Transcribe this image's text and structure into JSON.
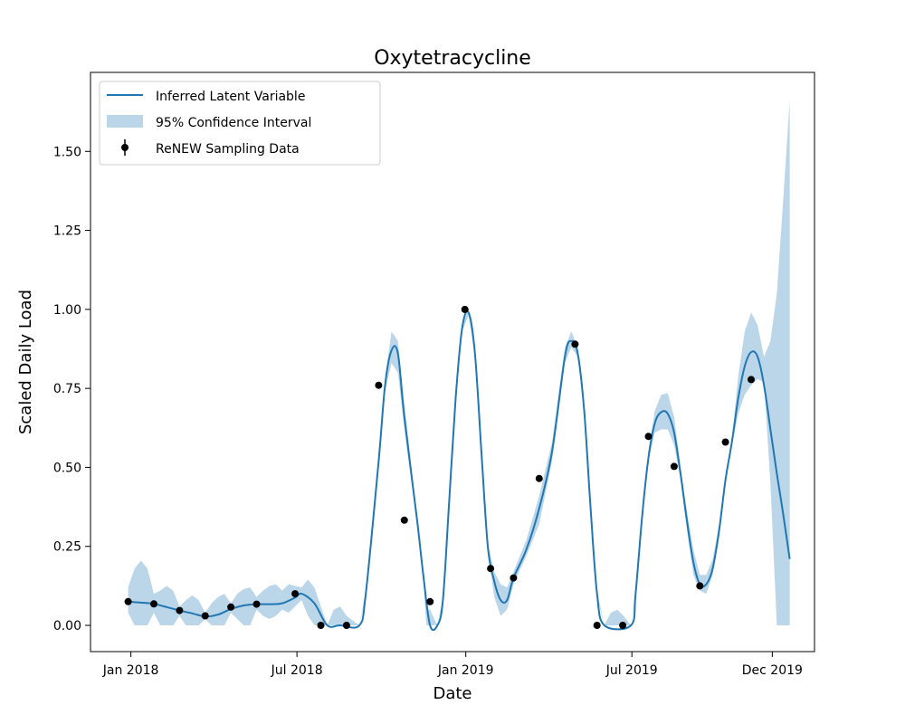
{
  "chart_data": {
    "type": "line",
    "title": "Oxytetracycline",
    "xlabel": "Date",
    "ylabel": "Scaled Daily Load",
    "x_tick_labels": [
      "Jan 2018",
      "Jul 2018",
      "Jan 2019",
      "Jul 2019",
      "Dec 2019"
    ],
    "x_ticks": [
      "2018-01-01",
      "2018-07-01",
      "2019-01-01",
      "2019-07-01",
      "2019-12-01"
    ],
    "y_ticks": [
      0.0,
      0.25,
      0.5,
      0.75,
      1.0,
      1.25,
      1.5
    ],
    "y_tick_labels": [
      "0.00",
      "0.25",
      "0.50",
      "0.75",
      "1.00",
      "1.25",
      "1.50"
    ],
    "xlim": [
      "2017-11-18",
      "2020-01-16"
    ],
    "ylim": [
      -0.083,
      1.75
    ],
    "grid": false,
    "legend_position": "top-left",
    "colors": {
      "line": "#1f77b4",
      "band": "#1f77b4",
      "points": "#000000"
    },
    "series": [
      {
        "name": "Inferred Latent Variable",
        "kind": "line",
        "points": [
          [
            "2017-12-29",
            0.075
          ],
          [
            "2018-01-12",
            0.072
          ],
          [
            "2018-01-26",
            0.068
          ],
          [
            "2018-02-09",
            0.058
          ],
          [
            "2018-02-23",
            0.047
          ],
          [
            "2018-03-09",
            0.038
          ],
          [
            "2018-03-23",
            0.028
          ],
          [
            "2018-04-06",
            0.034
          ],
          [
            "2018-04-20",
            0.052
          ],
          [
            "2018-05-04",
            0.063
          ],
          [
            "2018-05-18",
            0.067
          ],
          [
            "2018-06-01",
            0.067
          ],
          [
            "2018-06-15",
            0.07
          ],
          [
            "2018-06-29",
            0.088
          ],
          [
            "2018-07-06",
            0.1
          ],
          [
            "2018-07-20",
            0.07
          ],
          [
            "2018-08-03",
            0.0
          ],
          [
            "2018-08-17",
            0.0
          ],
          [
            "2018-09-07",
            0.0
          ],
          [
            "2018-09-14",
            0.1
          ],
          [
            "2018-09-28",
            0.52
          ],
          [
            "2018-10-05",
            0.76
          ],
          [
            "2018-10-12",
            0.87
          ],
          [
            "2018-10-19",
            0.86
          ],
          [
            "2018-10-26",
            0.66
          ],
          [
            "2018-11-09",
            0.33
          ],
          [
            "2018-11-16",
            0.15
          ],
          [
            "2018-11-23",
            0.0
          ],
          [
            "2018-12-01",
            0.0
          ],
          [
            "2018-12-07",
            0.08
          ],
          [
            "2018-12-14",
            0.4
          ],
          [
            "2018-12-21",
            0.72
          ],
          [
            "2018-12-28",
            0.94
          ],
          [
            "2019-01-04",
            0.99
          ],
          [
            "2019-01-11",
            0.86
          ],
          [
            "2019-01-18",
            0.55
          ],
          [
            "2019-01-25",
            0.25
          ],
          [
            "2019-02-01",
            0.14
          ],
          [
            "2019-02-08",
            0.08
          ],
          [
            "2019-02-15",
            0.08
          ],
          [
            "2019-02-22",
            0.15
          ],
          [
            "2019-03-08",
            0.24
          ],
          [
            "2019-03-22",
            0.37
          ],
          [
            "2019-04-05",
            0.55
          ],
          [
            "2019-04-19",
            0.85
          ],
          [
            "2019-04-26",
            0.9
          ],
          [
            "2019-05-03",
            0.86
          ],
          [
            "2019-05-10",
            0.68
          ],
          [
            "2019-05-17",
            0.37
          ],
          [
            "2019-05-24",
            0.1
          ],
          [
            "2019-06-01",
            0.0
          ],
          [
            "2019-06-30",
            0.0
          ],
          [
            "2019-07-05",
            0.1
          ],
          [
            "2019-07-12",
            0.34
          ],
          [
            "2019-07-19",
            0.53
          ],
          [
            "2019-07-26",
            0.64
          ],
          [
            "2019-08-02",
            0.675
          ],
          [
            "2019-08-09",
            0.67
          ],
          [
            "2019-08-16",
            0.61
          ],
          [
            "2019-08-23",
            0.48
          ],
          [
            "2019-08-30",
            0.33
          ],
          [
            "2019-09-06",
            0.2
          ],
          [
            "2019-09-13",
            0.13
          ],
          [
            "2019-09-20",
            0.13
          ],
          [
            "2019-09-27",
            0.18
          ],
          [
            "2019-10-04",
            0.3
          ],
          [
            "2019-10-11",
            0.46
          ],
          [
            "2019-10-18",
            0.58
          ],
          [
            "2019-10-25",
            0.72
          ],
          [
            "2019-11-01",
            0.82
          ],
          [
            "2019-11-08",
            0.865
          ],
          [
            "2019-11-15",
            0.85
          ],
          [
            "2019-11-22",
            0.76
          ],
          [
            "2019-11-29",
            0.62
          ],
          [
            "2019-12-06",
            0.48
          ],
          [
            "2019-12-13",
            0.35
          ],
          [
            "2019-12-20",
            0.21
          ]
        ]
      },
      {
        "name": "95% Confidence Interval",
        "kind": "band",
        "points": [
          [
            "2017-12-29",
            0.04,
            0.12
          ],
          [
            "2018-01-05",
            0.0,
            0.18
          ],
          [
            "2018-01-12",
            0.0,
            0.205
          ],
          [
            "2018-01-19",
            0.0,
            0.18
          ],
          [
            "2018-01-26",
            0.04,
            0.1
          ],
          [
            "2018-02-02",
            0.0,
            0.11
          ],
          [
            "2018-02-09",
            0.0,
            0.125
          ],
          [
            "2018-02-16",
            0.0,
            0.11
          ],
          [
            "2018-02-23",
            0.03,
            0.06
          ],
          [
            "2018-03-02",
            0.0,
            0.08
          ],
          [
            "2018-03-09",
            0.0,
            0.095
          ],
          [
            "2018-03-16",
            0.0,
            0.08
          ],
          [
            "2018-03-23",
            0.02,
            0.04
          ],
          [
            "2018-03-30",
            0.0,
            0.07
          ],
          [
            "2018-04-06",
            0.0,
            0.09
          ],
          [
            "2018-04-13",
            0.0,
            0.1
          ],
          [
            "2018-04-20",
            0.04,
            0.07
          ],
          [
            "2018-04-27",
            0.02,
            0.1
          ],
          [
            "2018-05-04",
            0.0,
            0.115
          ],
          [
            "2018-05-11",
            0.0,
            0.12
          ],
          [
            "2018-05-18",
            0.05,
            0.09
          ],
          [
            "2018-05-25",
            0.03,
            0.11
          ],
          [
            "2018-06-01",
            0.02,
            0.125
          ],
          [
            "2018-06-08",
            0.03,
            0.13
          ],
          [
            "2018-06-15",
            0.05,
            0.11
          ],
          [
            "2018-06-22",
            0.04,
            0.13
          ],
          [
            "2018-06-29",
            0.06,
            0.125
          ],
          [
            "2018-07-06",
            0.08,
            0.12
          ],
          [
            "2018-07-13",
            0.03,
            0.145
          ],
          [
            "2018-07-20",
            0.0,
            0.12
          ],
          [
            "2018-07-27",
            0.0,
            0.06
          ],
          [
            "2018-08-03",
            0.0,
            0.0
          ],
          [
            "2018-08-10",
            0.0,
            0.05
          ],
          [
            "2018-08-17",
            0.0,
            0.06
          ],
          [
            "2018-08-24",
            0.0,
            0.03
          ],
          [
            "2018-09-07",
            0.0,
            0.0
          ],
          [
            "2018-09-14",
            0.09,
            0.11
          ],
          [
            "2018-09-28",
            0.5,
            0.54
          ],
          [
            "2018-10-05",
            0.74,
            0.78
          ],
          [
            "2018-10-12",
            0.83,
            0.93
          ],
          [
            "2018-10-19",
            0.8,
            0.9
          ],
          [
            "2018-10-26",
            0.62,
            0.7
          ],
          [
            "2018-11-09",
            0.32,
            0.34
          ],
          [
            "2018-11-16",
            0.13,
            0.17
          ],
          [
            "2018-11-19",
            0.0,
            0.05
          ],
          [
            "2018-11-23",
            0.0,
            0.05
          ],
          [
            "2018-11-26",
            0.0,
            0.03
          ],
          [
            "2018-12-01",
            0.0,
            0.0
          ],
          [
            "2018-12-07",
            0.07,
            0.09
          ],
          [
            "2018-12-14",
            0.39,
            0.41
          ],
          [
            "2018-12-21",
            0.71,
            0.73
          ],
          [
            "2018-12-28",
            0.93,
            0.95
          ],
          [
            "2019-01-04",
            0.98,
            1.0
          ],
          [
            "2019-01-11",
            0.85,
            0.87
          ],
          [
            "2019-01-18",
            0.53,
            0.57
          ],
          [
            "2019-01-25",
            0.24,
            0.26
          ],
          [
            "2019-02-01",
            0.09,
            0.17
          ],
          [
            "2019-02-08",
            0.03,
            0.13
          ],
          [
            "2019-02-15",
            0.05,
            0.12
          ],
          [
            "2019-02-22",
            0.13,
            0.17
          ],
          [
            "2019-03-08",
            0.22,
            0.27
          ],
          [
            "2019-03-22",
            0.32,
            0.41
          ],
          [
            "2019-04-05",
            0.52,
            0.58
          ],
          [
            "2019-04-19",
            0.83,
            0.88
          ],
          [
            "2019-04-26",
            0.88,
            0.93
          ],
          [
            "2019-05-03",
            0.85,
            0.88
          ],
          [
            "2019-05-10",
            0.67,
            0.69
          ],
          [
            "2019-05-17",
            0.36,
            0.38
          ],
          [
            "2019-05-24",
            0.09,
            0.11
          ],
          [
            "2019-06-01",
            0.0,
            0.0
          ],
          [
            "2019-06-08",
            0.0,
            0.04
          ],
          [
            "2019-06-15",
            0.0,
            0.05
          ],
          [
            "2019-06-22",
            0.0,
            0.03
          ],
          [
            "2019-06-30",
            0.0,
            0.0
          ],
          [
            "2019-07-05",
            0.09,
            0.11
          ],
          [
            "2019-07-12",
            0.33,
            0.35
          ],
          [
            "2019-07-19",
            0.52,
            0.55
          ],
          [
            "2019-07-26",
            0.61,
            0.68
          ],
          [
            "2019-08-02",
            0.62,
            0.73
          ],
          [
            "2019-08-09",
            0.62,
            0.735
          ],
          [
            "2019-08-16",
            0.57,
            0.66
          ],
          [
            "2019-08-23",
            0.46,
            0.5
          ],
          [
            "2019-08-30",
            0.3,
            0.36
          ],
          [
            "2019-09-06",
            0.16,
            0.24
          ],
          [
            "2019-09-13",
            0.11,
            0.16
          ],
          [
            "2019-09-20",
            0.1,
            0.16
          ],
          [
            "2019-09-27",
            0.16,
            0.21
          ],
          [
            "2019-10-04",
            0.28,
            0.32
          ],
          [
            "2019-10-11",
            0.45,
            0.47
          ],
          [
            "2019-10-18",
            0.57,
            0.59
          ],
          [
            "2019-10-25",
            0.67,
            0.79
          ],
          [
            "2019-11-01",
            0.73,
            0.93
          ],
          [
            "2019-11-08",
            0.76,
            0.99
          ],
          [
            "2019-11-15",
            0.78,
            0.95
          ],
          [
            "2019-11-22",
            0.77,
            0.85
          ],
          [
            "2019-11-29",
            0.45,
            0.9
          ],
          [
            "2019-12-06",
            0.0,
            1.05
          ],
          [
            "2019-12-13",
            0.0,
            1.35
          ],
          [
            "2019-12-20",
            0.0,
            1.66
          ]
        ]
      },
      {
        "name": "ReNEW Sampling Data",
        "kind": "points",
        "points": [
          [
            "2017-12-29",
            0.075
          ],
          [
            "2018-01-26",
            0.068
          ],
          [
            "2018-02-23",
            0.047
          ],
          [
            "2018-03-23",
            0.03
          ],
          [
            "2018-04-20",
            0.058
          ],
          [
            "2018-05-18",
            0.067
          ],
          [
            "2018-06-29",
            0.1
          ],
          [
            "2018-07-27",
            0.0
          ],
          [
            "2018-08-24",
            0.0
          ],
          [
            "2018-09-28",
            0.76
          ],
          [
            "2018-10-26",
            0.333
          ],
          [
            "2018-11-23",
            0.075
          ],
          [
            "2018-12-31",
            1.0
          ],
          [
            "2019-01-28",
            0.18
          ],
          [
            "2019-02-22",
            0.15
          ],
          [
            "2019-03-22",
            0.465
          ],
          [
            "2019-04-30",
            0.89
          ],
          [
            "2019-05-24",
            0.0
          ],
          [
            "2019-06-21",
            0.0
          ],
          [
            "2019-07-19",
            0.598
          ],
          [
            "2019-08-16",
            0.503
          ],
          [
            "2019-09-13",
            0.125
          ],
          [
            "2019-10-11",
            0.58
          ],
          [
            "2019-11-08",
            0.778
          ]
        ]
      }
    ]
  }
}
